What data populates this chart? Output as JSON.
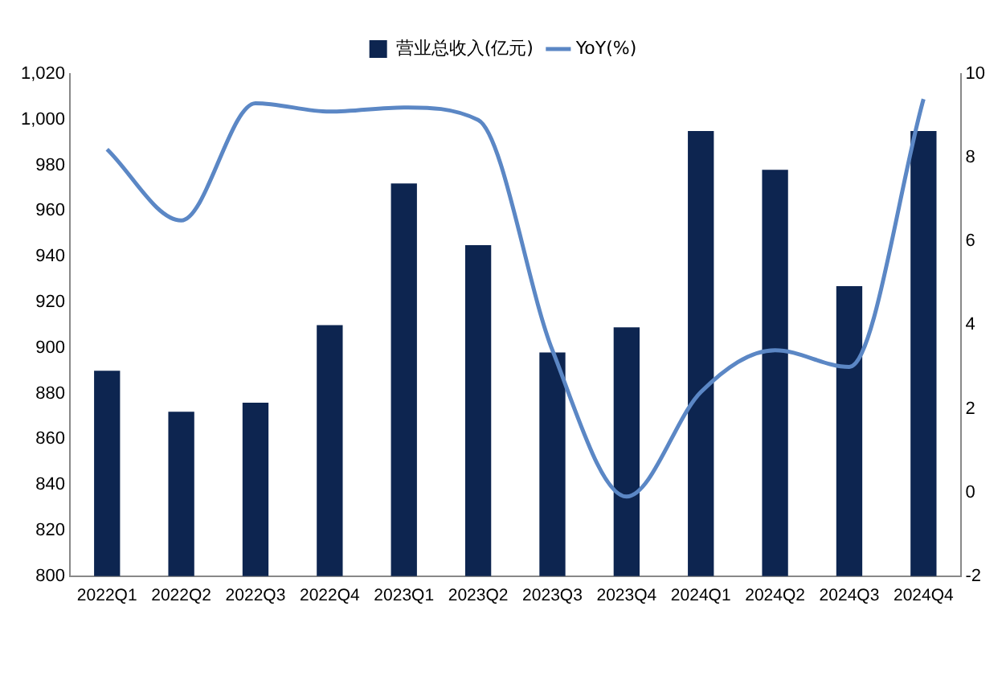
{
  "chart_data": {
    "type": "bar",
    "categories": [
      "2022Q1",
      "2022Q2",
      "2022Q3",
      "2022Q4",
      "2023Q1",
      "2023Q2",
      "2023Q3",
      "2023Q4",
      "2024Q1",
      "2024Q2",
      "2024Q3",
      "2024Q4"
    ],
    "series": [
      {
        "name": "营业总收入(亿元)",
        "color": "#0d2550",
        "values": [
          890,
          872,
          876,
          910,
          972,
          945,
          898,
          909,
          995,
          978,
          927,
          995
        ]
      },
      {
        "name": "YoY(%)",
        "type": "line",
        "axis": "y2",
        "color": "#5b87c5",
        "marker": "none",
        "values": [
          8.2,
          6.5,
          9.3,
          9.1,
          9.2,
          8.9,
          3.4,
          -0.1,
          2.4,
          3.4,
          3.0,
          9.4
        ]
      }
    ],
    "ylim": [
      800,
      1020
    ],
    "yticks": [
      800,
      820,
      840,
      860,
      880,
      900,
      920,
      940,
      960,
      980,
      {
        "value": 1000,
        "label": "1,000"
      },
      {
        "value": 1020,
        "label": "1,020"
      }
    ],
    "y2lim": [
      -2,
      10
    ],
    "y2ticks": [
      -2,
      0,
      2,
      4,
      6,
      8,
      10
    ],
    "legend": "top",
    "grid": false
  }
}
